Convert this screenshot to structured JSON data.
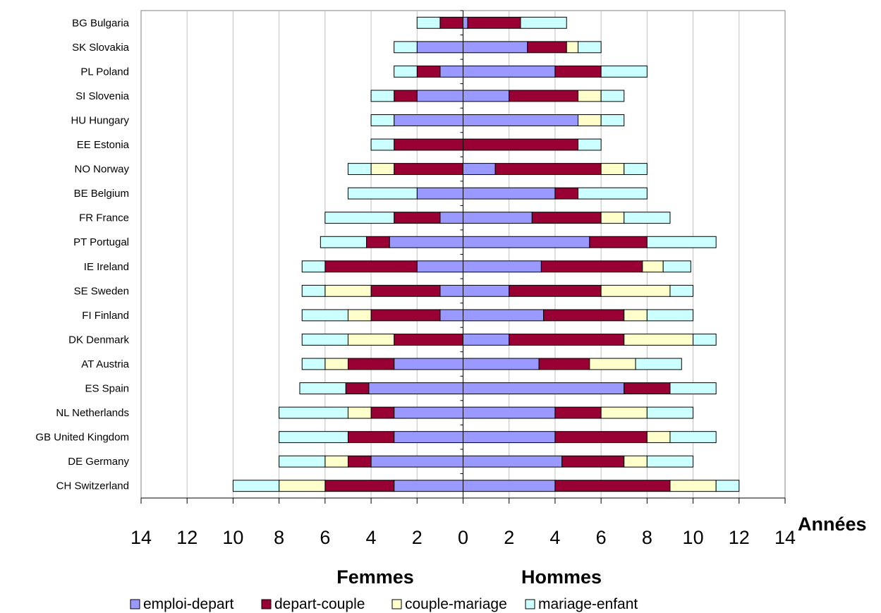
{
  "chart_data": {
    "type": "bar",
    "orientation": "horizontal",
    "stacked": true,
    "diverging": true,
    "xlim": [
      -14,
      14
    ],
    "x_ticks": [
      -14,
      -12,
      -10,
      -8,
      -6,
      -4,
      -2,
      0,
      2,
      4,
      6,
      8,
      10,
      12,
      14
    ],
    "x_tick_labels": [
      "14",
      "12",
      "10",
      "8",
      "6",
      "4",
      "2",
      "0",
      "2",
      "4",
      "6",
      "8",
      "10",
      "12",
      "14"
    ],
    "xlabel": "Années",
    "left_side_label": "Femmes",
    "right_side_label": "Hommes",
    "grid": "vertical",
    "legend_position": "bottom",
    "categories": [
      "BG  Bulgaria",
      "SK  Slovakia",
      "PL  Poland",
      "SI  Slovenia",
      "HU  Hungary",
      "EE  Estonia",
      "NO  Norway",
      "BE  Belgium",
      "FR  France",
      "PT  Portugal",
      "IE  Ireland",
      "SE  Sweden",
      "FI  Finland",
      "DK  Denmark",
      "AT  Austria",
      "ES  Spain",
      "NL  Netherlands",
      "GB  United Kingdom",
      "DE  Germany",
      "CH  Switzerland"
    ],
    "series": [
      {
        "name": "emploi-depart",
        "color": "#9999ff",
        "femmes": [
          0,
          2,
          1,
          2,
          3,
          0,
          0,
          2,
          1,
          3.2,
          2,
          1,
          1,
          0,
          3,
          4.1,
          3,
          3,
          4,
          3
        ],
        "hommes": [
          0.2,
          2.8,
          4,
          2,
          5,
          0,
          1.4,
          4,
          3,
          5.5,
          3.4,
          2,
          3.5,
          2,
          3.3,
          7,
          4,
          4,
          4.3,
          4
        ]
      },
      {
        "name": "depart-couple",
        "color": "#990033",
        "femmes": [
          1,
          0,
          1,
          1,
          0,
          3,
          3,
          0,
          2,
          1,
          4,
          3,
          3,
          3,
          2,
          1,
          1,
          2,
          1,
          3
        ],
        "hommes": [
          2.3,
          1.7,
          2,
          3,
          0,
          5,
          4.6,
          1,
          3,
          2.5,
          4.4,
          4,
          3.5,
          5,
          2.2,
          2,
          2,
          4,
          2.7,
          5
        ]
      },
      {
        "name": "couple-mariage",
        "color": "#ffffcc",
        "femmes": [
          0,
          0,
          0,
          0,
          0,
          0,
          1,
          0,
          0,
          0,
          0,
          2,
          1,
          2,
          1,
          0,
          1,
          0,
          1,
          2
        ],
        "hommes": [
          0,
          0.5,
          0,
          1,
          1,
          0,
          1,
          0,
          1,
          0,
          0.9,
          3,
          1,
          3,
          2,
          0,
          2,
          1,
          1,
          2
        ]
      },
      {
        "name": "mariage-enfant",
        "color": "#ccffff",
        "femmes": [
          1,
          1,
          1,
          1,
          1,
          1,
          1,
          3,
          3,
          2,
          1,
          1,
          2,
          2,
          1,
          2,
          3,
          3,
          2,
          2
        ],
        "hommes": [
          2,
          1,
          2,
          1,
          1,
          1,
          1,
          3,
          2,
          3,
          1.2,
          1,
          2,
          1,
          2,
          2,
          2,
          2,
          2,
          1
        ]
      }
    ]
  }
}
